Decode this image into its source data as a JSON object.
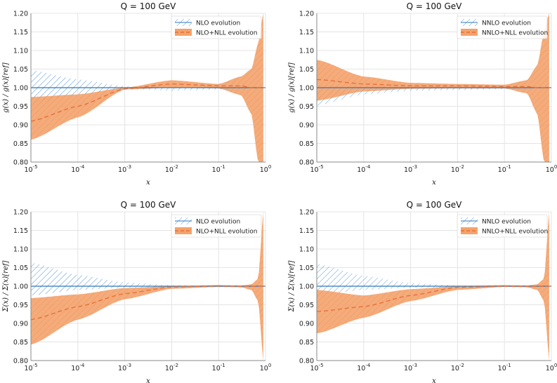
{
  "colors": {
    "orange": "#f4a26b",
    "orange_line": "#e8703a",
    "blue": "#5b9bd5",
    "blue_line": "#2f78b8",
    "grid": "#e4e4e4",
    "ref_line": "#555555"
  },
  "chart_data": [
    {
      "type": "area",
      "title": "Q = 100 GeV",
      "xlabel": "x",
      "ylabel": "g(x) / g(x)[ref]",
      "xscale": "log",
      "xlim": [
        1e-05,
        1
      ],
      "ylim": [
        0.8,
        1.2
      ],
      "yticks": [
        "0.80",
        "0.85",
        "0.90",
        "0.95",
        "1.00",
        "1.05",
        "1.10",
        "1.15",
        "1.20"
      ],
      "xticks": [
        "10-5",
        "10-4",
        "10-3",
        "10-2",
        "10-1",
        "100"
      ],
      "legend_position": "top-right",
      "grid": true,
      "series": [
        {
          "name": "NLO evolution",
          "style": "hatched-blue",
          "x": [
            1e-05,
            0.0001,
            0.001,
            0.01,
            0.1,
            0.3,
            0.5,
            0.7,
            0.9
          ],
          "center": [
            1.0,
            1.0,
            1.0,
            1.0,
            1.0,
            1.0,
            1.0,
            1.0,
            1.0
          ],
          "upper": [
            1.047,
            1.022,
            1.004,
            1.0,
            1.0,
            1.0,
            1.0,
            1.0,
            1.0
          ],
          "lower": [
            0.955,
            0.982,
            0.996,
            0.992,
            0.995,
            1.0,
            1.0,
            1.0,
            1.0
          ]
        },
        {
          "name": "NLO+NLL evolution",
          "style": "orange-band",
          "x": [
            1e-05,
            0.0001,
            0.001,
            0.01,
            0.1,
            0.3,
            0.5,
            0.7,
            0.9
          ],
          "center": [
            0.91,
            0.95,
            0.997,
            1.01,
            1.005,
            1.005,
            1.0,
            1.0,
            1.0
          ],
          "upper": [
            0.975,
            0.982,
            1.0,
            1.02,
            1.01,
            1.03,
            1.05,
            1.12,
            1.2
          ],
          "lower": [
            0.86,
            0.92,
            0.995,
            1.0,
            0.998,
            0.98,
            0.93,
            0.8,
            0.8
          ]
        }
      ]
    },
    {
      "type": "area",
      "title": "Q = 100 GeV",
      "xlabel": "x",
      "ylabel": "g(x) / g(x)[ref]",
      "xscale": "log",
      "xlim": [
        1e-05,
        1
      ],
      "ylim": [
        0.8,
        1.2
      ],
      "yticks": [
        "0.80",
        "0.85",
        "0.90",
        "0.95",
        "1.00",
        "1.05",
        "1.10",
        "1.15",
        "1.20"
      ],
      "xticks": [
        "10-5",
        "10-4",
        "10-3",
        "10-2",
        "10-1",
        "100"
      ],
      "legend_position": "top-right",
      "grid": true,
      "series": [
        {
          "name": "NNLO evolution",
          "style": "hatched-blue",
          "x": [
            1e-05,
            0.0001,
            0.001,
            0.01,
            0.1,
            0.3,
            0.5,
            0.7,
            0.9
          ],
          "center": [
            1.0,
            1.0,
            1.0,
            1.0,
            1.0,
            1.0,
            1.0,
            1.0,
            1.0
          ],
          "upper": [
            1.005,
            1.003,
            1.002,
            1.002,
            1.002,
            1.0,
            1.0,
            1.0,
            1.0
          ],
          "lower": [
            0.952,
            0.982,
            0.992,
            0.994,
            0.996,
            1.0,
            1.0,
            1.0,
            1.0
          ]
        },
        {
          "name": "NNLO+NLL evolution",
          "style": "orange-band",
          "x": [
            1e-05,
            0.0001,
            0.001,
            0.01,
            0.1,
            0.3,
            0.5,
            0.7,
            0.9
          ],
          "center": [
            1.022,
            1.01,
            1.005,
            1.005,
            1.003,
            1.003,
            1.0,
            1.0,
            1.0
          ],
          "upper": [
            1.075,
            1.03,
            1.013,
            1.01,
            1.008,
            1.02,
            1.06,
            1.15,
            1.2
          ],
          "lower": [
            0.965,
            0.99,
            0.997,
            0.998,
            0.998,
            0.985,
            0.93,
            0.8,
            0.8
          ]
        }
      ]
    },
    {
      "type": "area",
      "title": "Q = 100 GeV",
      "xlabel": "x",
      "ylabel": "Σ(x) / Σ(x)[ref]",
      "xscale": "log",
      "xlim": [
        1e-05,
        1
      ],
      "ylim": [
        0.8,
        1.2
      ],
      "yticks": [
        "0.80",
        "0.85",
        "0.90",
        "0.95",
        "1.00",
        "1.05",
        "1.10",
        "1.15",
        "1.20"
      ],
      "xticks": [
        "10-5",
        "10-4",
        "10-3",
        "10-2",
        "10-1",
        "100"
      ],
      "legend_position": "top-right",
      "grid": true,
      "series": [
        {
          "name": "NLO evolution",
          "style": "hatched-blue",
          "x": [
            1e-05,
            0.0001,
            0.001,
            0.01,
            0.1,
            0.3,
            0.5,
            0.7,
            0.9
          ],
          "center": [
            1.0,
            1.0,
            1.0,
            1.0,
            1.0,
            1.0,
            1.0,
            1.0,
            1.0
          ],
          "upper": [
            1.063,
            1.03,
            1.01,
            1.003,
            1.002,
            1.0,
            1.0,
            1.0,
            1.0
          ],
          "lower": [
            0.975,
            0.99,
            0.996,
            0.998,
            0.998,
            1.0,
            1.0,
            1.0,
            1.0
          ]
        },
        {
          "name": "NLO+NLL evolution",
          "style": "orange-band",
          "x": [
            1e-05,
            0.0001,
            0.001,
            0.01,
            0.1,
            0.3,
            0.5,
            0.7,
            0.9
          ],
          "center": [
            0.91,
            0.945,
            0.98,
            0.998,
            1.001,
            1.0,
            1.0,
            1.0,
            1.0
          ],
          "upper": [
            0.968,
            0.978,
            0.995,
            1.0,
            1.003,
            1.002,
            1.005,
            1.02,
            1.2
          ],
          "lower": [
            0.843,
            0.91,
            0.965,
            0.993,
            0.998,
            0.997,
            0.99,
            0.96,
            0.8
          ]
        }
      ]
    },
    {
      "type": "area",
      "title": "Q = 100 GeV",
      "xlabel": "x",
      "ylabel": "Σ(x) / Σ(x)[ref]",
      "xscale": "log",
      "xlim": [
        1e-05,
        1
      ],
      "ylim": [
        0.8,
        1.2
      ],
      "yticks": [
        "0.80",
        "0.85",
        "0.90",
        "0.95",
        "1.00",
        "1.05",
        "1.10",
        "1.15",
        "1.20"
      ],
      "xticks": [
        "10-5",
        "10-4",
        "10-3",
        "10-2",
        "10-1",
        "100"
      ],
      "legend_position": "top-right",
      "grid": true,
      "series": [
        {
          "name": "NNLO evolution",
          "style": "hatched-blue",
          "x": [
            1e-05,
            0.0001,
            0.001,
            0.01,
            0.1,
            0.3,
            0.5,
            0.7,
            0.9
          ],
          "center": [
            1.0,
            1.0,
            1.0,
            1.0,
            1.0,
            1.0,
            1.0,
            1.0,
            1.0
          ],
          "upper": [
            1.06,
            1.028,
            1.008,
            1.002,
            1.001,
            1.0,
            1.0,
            1.0,
            1.0
          ],
          "lower": [
            0.975,
            0.99,
            0.996,
            0.998,
            0.998,
            1.0,
            1.0,
            1.0,
            1.0
          ]
        },
        {
          "name": "NNLO+NLL evolution",
          "style": "orange-band",
          "x": [
            1e-05,
            0.0001,
            0.001,
            0.01,
            0.1,
            0.3,
            0.5,
            0.7,
            0.9
          ],
          "center": [
            0.932,
            0.945,
            0.975,
            0.997,
            1.0,
            1.0,
            1.0,
            1.0,
            1.0
          ],
          "upper": [
            0.99,
            0.975,
            0.992,
            1.0,
            1.003,
            1.002,
            1.005,
            1.02,
            1.2
          ],
          "lower": [
            0.873,
            0.915,
            0.96,
            0.99,
            0.998,
            0.997,
            0.99,
            0.96,
            0.8
          ]
        }
      ]
    }
  ]
}
